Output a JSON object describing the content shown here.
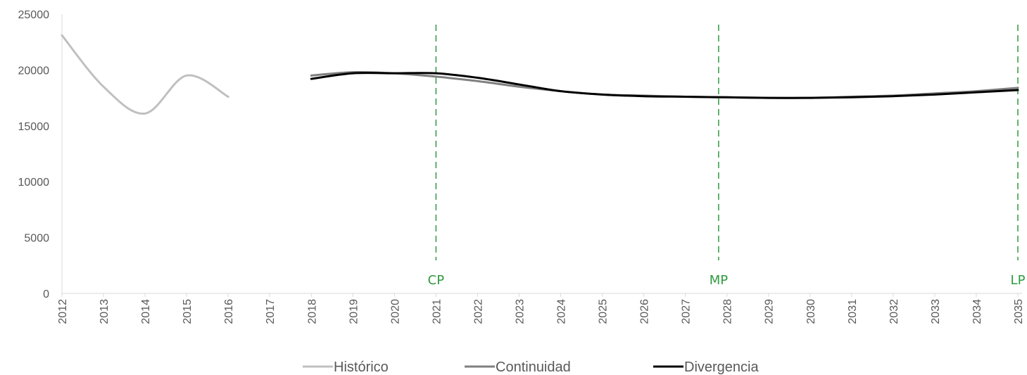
{
  "chart_data": {
    "type": "line",
    "x": [
      2012,
      2013,
      2014,
      2015,
      2016,
      2017,
      2018,
      2019,
      2020,
      2021,
      2022,
      2023,
      2024,
      2025,
      2026,
      2027,
      2028,
      2029,
      2030,
      2031,
      2032,
      2033,
      2034,
      2035
    ],
    "ylim": [
      0,
      25000
    ],
    "yticks": [
      0,
      5000,
      10000,
      15000,
      20000,
      25000
    ],
    "series": [
      {
        "name": "Histórico",
        "color": "#c0c0c0",
        "values": [
          23100,
          18500,
          16100,
          19500,
          17600,
          null,
          null,
          null,
          null,
          null,
          null,
          null,
          null,
          null,
          null,
          null,
          null,
          null,
          null,
          null,
          null,
          null,
          null,
          null
        ]
      },
      {
        "name": "Continuidad",
        "color": "#7f7f7f",
        "values": [
          null,
          null,
          null,
          null,
          null,
          null,
          19500,
          19800,
          19700,
          19400,
          19000,
          18500,
          18100,
          17800,
          17700,
          17600,
          17550,
          17500,
          17500,
          17600,
          17700,
          17900,
          18100,
          18400
        ]
      },
      {
        "name": "Divergencia",
        "color": "#000000",
        "values": [
          null,
          null,
          null,
          null,
          null,
          null,
          19200,
          19700,
          19700,
          19700,
          19300,
          18700,
          18100,
          17800,
          17650,
          17600,
          17550,
          17500,
          17500,
          17550,
          17650,
          17800,
          18000,
          18200
        ]
      }
    ],
    "markers": [
      {
        "label": "CP",
        "x": 2021,
        "color": "#2e9a3f"
      },
      {
        "label": "MP",
        "x": 2027.8,
        "color": "#2e9a3f"
      },
      {
        "label": "LP",
        "x": 2035,
        "color": "#2e9a3f"
      }
    ],
    "grid": false,
    "legend_position": "bottom"
  }
}
